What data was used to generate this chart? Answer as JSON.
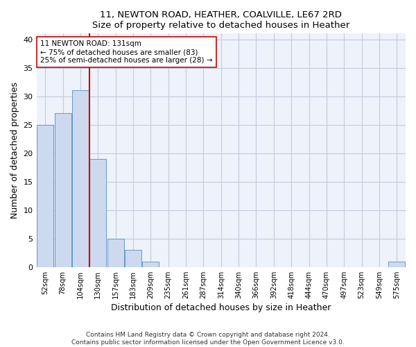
{
  "title1": "11, NEWTON ROAD, HEATHER, COALVILLE, LE67 2RD",
  "title2": "Size of property relative to detached houses in Heather",
  "xlabel": "Distribution of detached houses by size in Heather",
  "ylabel": "Number of detached properties",
  "bin_labels": [
    "52sqm",
    "78sqm",
    "104sqm",
    "130sqm",
    "157sqm",
    "183sqm",
    "209sqm",
    "235sqm",
    "261sqm",
    "287sqm",
    "314sqm",
    "340sqm",
    "366sqm",
    "392sqm",
    "418sqm",
    "444sqm",
    "470sqm",
    "497sqm",
    "523sqm",
    "549sqm",
    "575sqm"
  ],
  "bar_heights": [
    25,
    27,
    31,
    19,
    5,
    3,
    1,
    0,
    0,
    0,
    0,
    0,
    0,
    0,
    0,
    0,
    0,
    0,
    0,
    0,
    1
  ],
  "bar_color": "#ccd9ee",
  "bar_edge_color": "#6699cc",
  "red_line_index": 3,
  "red_line_color": "#cc0000",
  "annotation_text": "11 NEWTON ROAD: 131sqm\n← 75% of detached houses are smaller (83)\n25% of semi-detached houses are larger (28) →",
  "annotation_box_color": "#ffffff",
  "annotation_box_edge": "#cc0000",
  "ylim": [
    0,
    41
  ],
  "yticks": [
    0,
    5,
    10,
    15,
    20,
    25,
    30,
    35,
    40
  ],
  "footer1": "Contains HM Land Registry data © Crown copyright and database right 2024.",
  "footer2": "Contains public sector information licensed under the Open Government Licence v3.0.",
  "bg_color": "#eef2fa",
  "grid_color": "#c0ccdd"
}
